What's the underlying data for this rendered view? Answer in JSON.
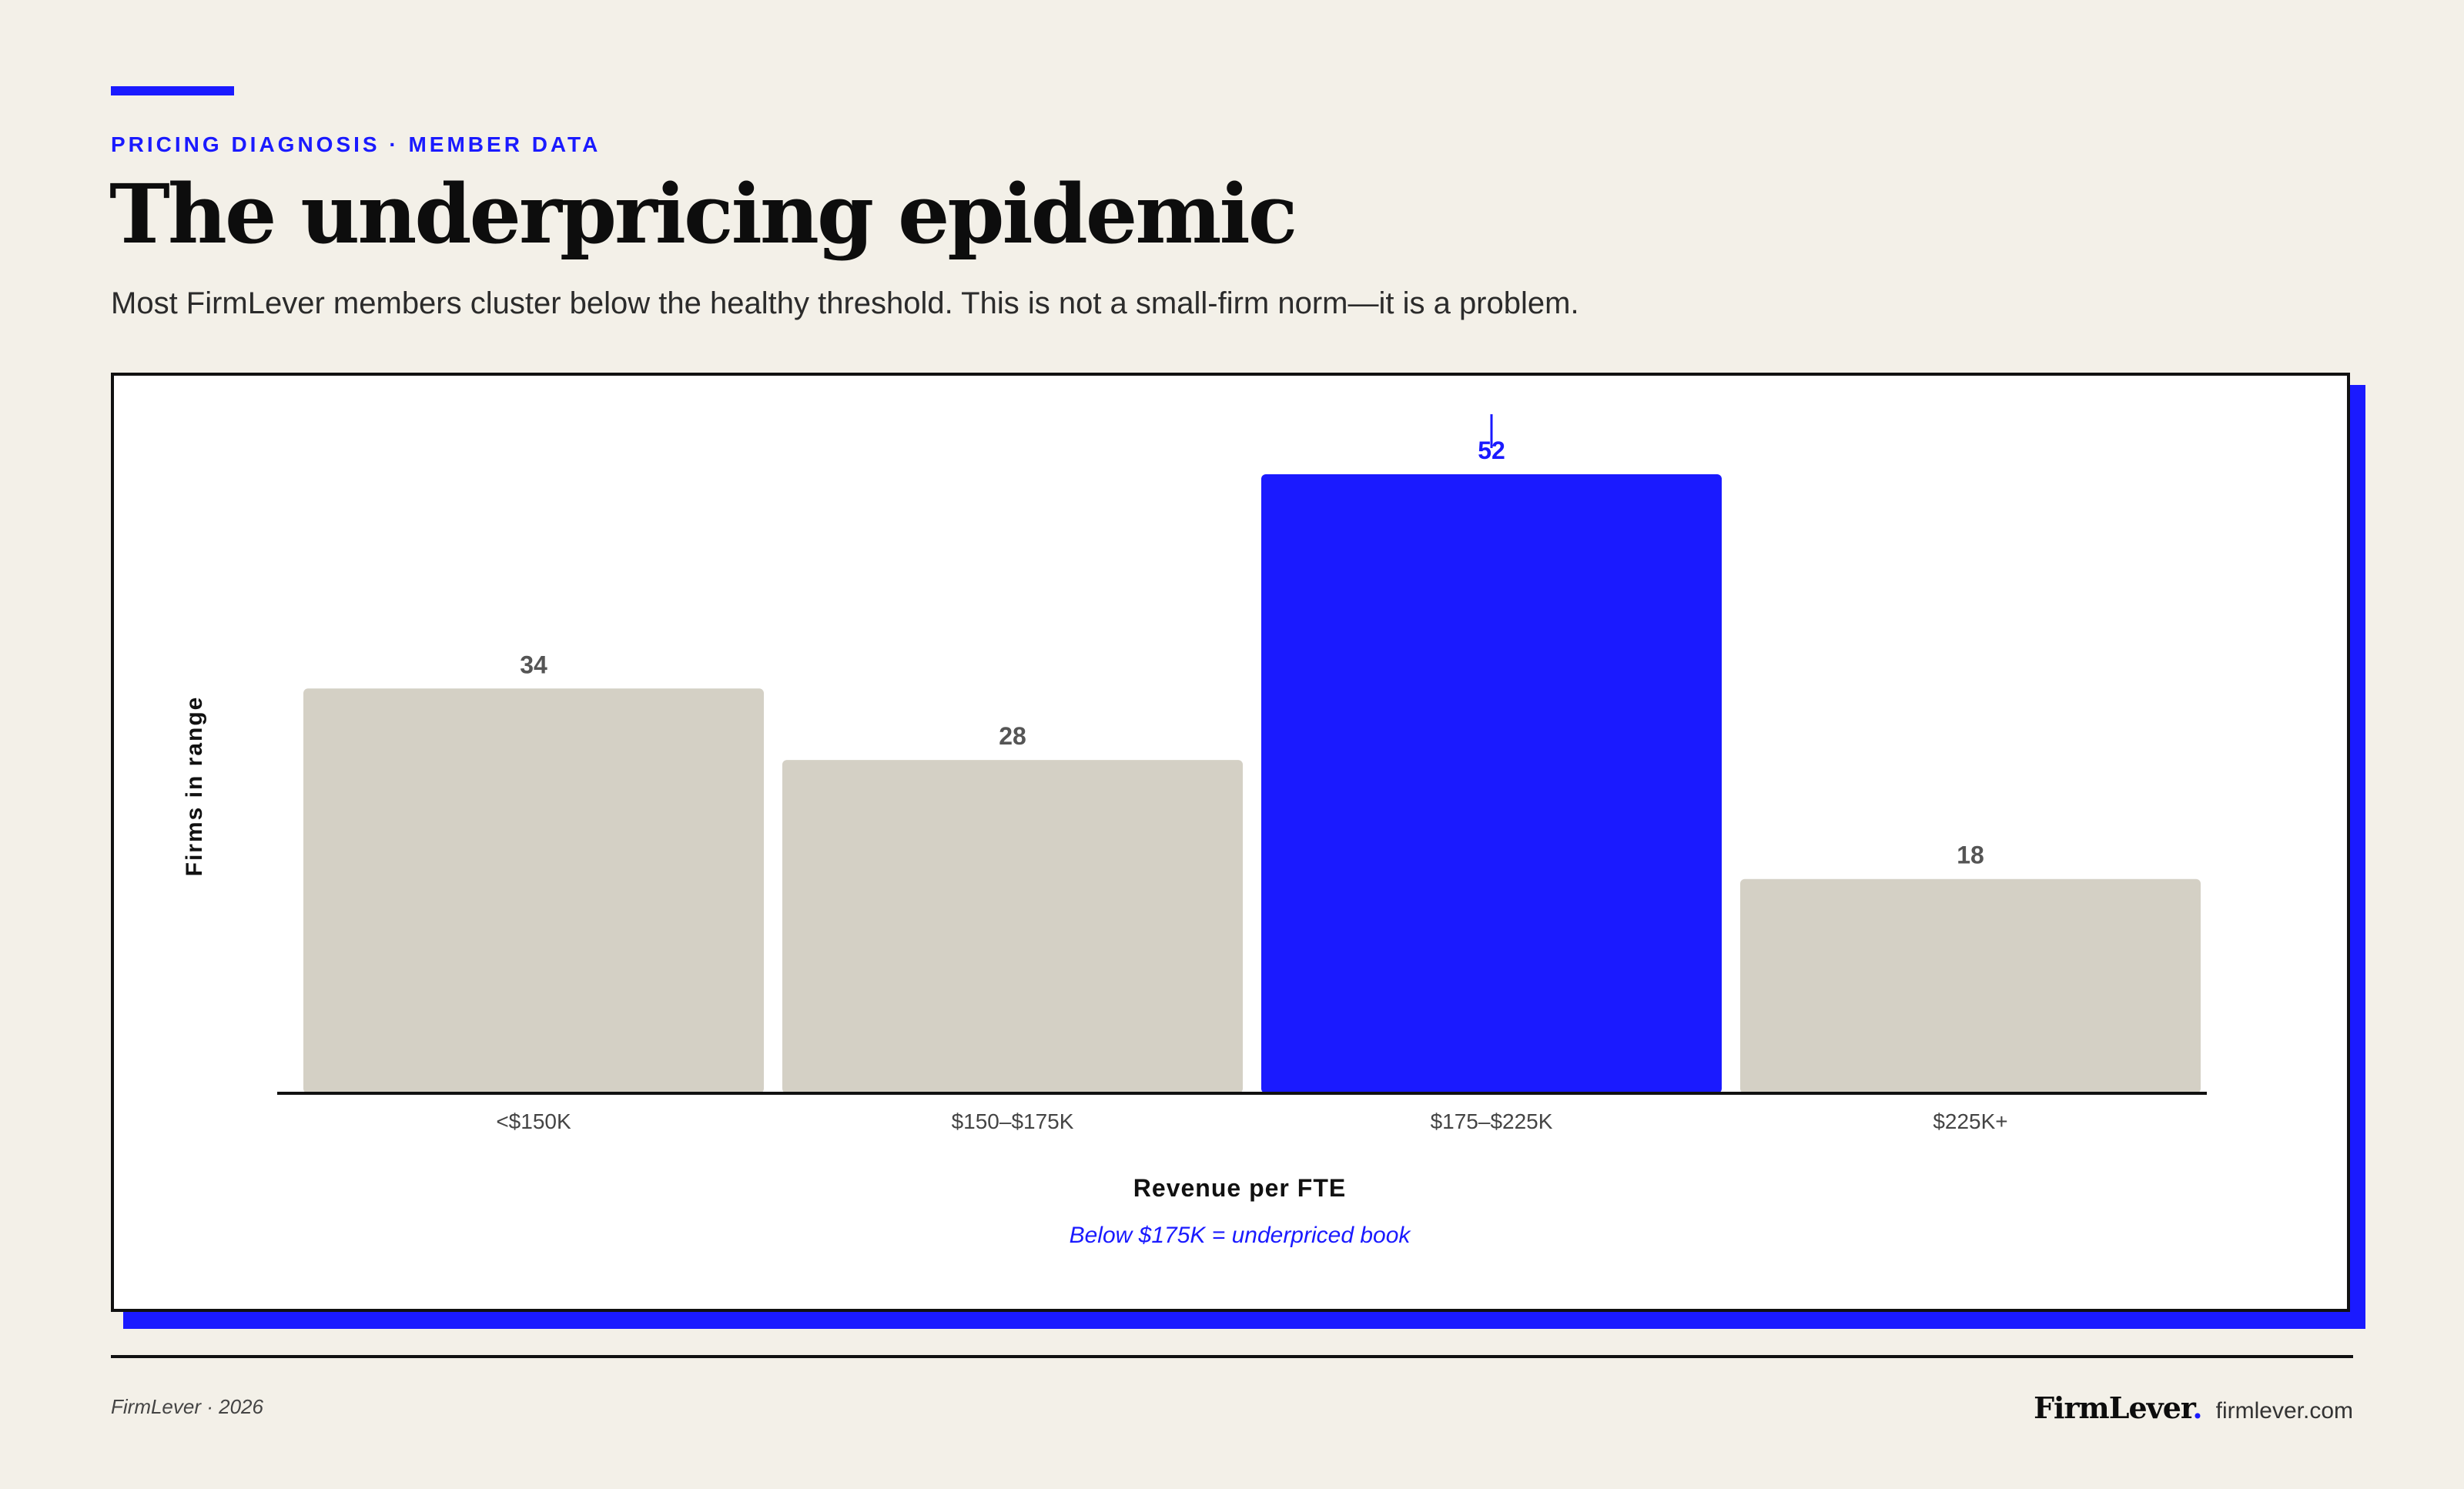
{
  "header": {
    "eyebrow": "PRICING DIAGNOSIS · MEMBER DATA",
    "title": "The underpricing epidemic",
    "subtitle": "Most FirmLever members cluster below the healthy threshold. This is not a small-firm norm—it is a problem."
  },
  "chart_data": {
    "type": "bar",
    "categories": [
      "<$150K",
      "$150–$175K",
      "$175–$225K",
      "$225K+"
    ],
    "values": [
      34,
      28,
      52,
      18
    ],
    "highlight_index": 2,
    "xlabel": "Revenue per FTE",
    "ylabel": "Firms in range",
    "annotation": "Below $175K = underpriced book",
    "ylim": [
      0,
      52
    ],
    "grid": false,
    "colors": {
      "default_bar": "#d4d0c5",
      "highlight_bar": "#1a1aff",
      "label": "#555555",
      "axis": "#111111"
    }
  },
  "footer": {
    "left": "FirmLever · 2026",
    "brand": "FirmLever",
    "brand_dot": ".",
    "site": "firmlever.com"
  },
  "colors": {
    "background": "#f3f0e8",
    "accent": "#1a1aff",
    "ink": "#111111"
  }
}
